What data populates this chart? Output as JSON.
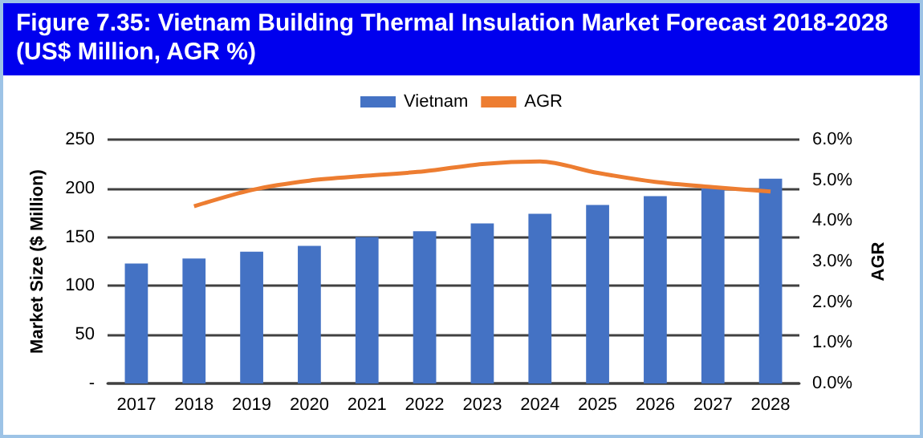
{
  "chart_data": {
    "type": "bar",
    "title": "Figure 7.35: Vietnam Building Thermal Insulation Market Forecast 2018-2028 (US$ Million, AGR %)",
    "categories": [
      "2017",
      "2018",
      "2019",
      "2020",
      "2021",
      "2022",
      "2023",
      "2024",
      "2025",
      "2026",
      "2027",
      "2028"
    ],
    "series": [
      {
        "name": "Vietnam",
        "color": "#4472c4",
        "values": [
          123,
          128,
          135,
          141,
          150,
          156,
          164,
          174,
          183,
          192,
          200,
          210
        ]
      },
      {
        "name": "AGR",
        "type": "line",
        "axis": "y2",
        "color": "#ed7d31",
        "values": [
          null,
          4.36,
          4.76,
          4.99,
          5.11,
          5.22,
          5.4,
          5.46,
          5.18,
          4.96,
          4.83,
          4.72
        ]
      }
    ],
    "ylabel": "Market Size ($ Million)",
    "y2label": "AGR",
    "ylim": [
      0,
      250
    ],
    "yticks": [
      {
        "value": 0,
        "label": "-"
      },
      50,
      100,
      150,
      200,
      250
    ],
    "y2lim": [
      0,
      6
    ],
    "y2ticks": [
      {
        "value": 0,
        "label": "0.0%"
      },
      {
        "value": 1,
        "label": "1.0%"
      },
      {
        "value": 2,
        "label": "2.0%"
      },
      {
        "value": 3,
        "label": "3.0%"
      },
      {
        "value": 4,
        "label": "4.0%"
      },
      {
        "value": 5,
        "label": "5.0%"
      },
      {
        "value": 6,
        "label": "6.0%"
      }
    ],
    "grid": "y",
    "legend": "top",
    "marker": "none"
  }
}
